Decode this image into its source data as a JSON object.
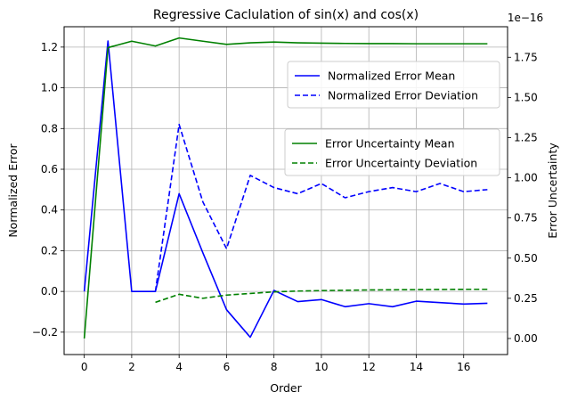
{
  "chart_data": {
    "type": "line",
    "title": "Regressive Caclulation of sin(x) and cos(x)",
    "xlabel": "Order",
    "ylabel_left": "Normalized Error",
    "ylabel_right": "Error Uncertainty",
    "right_axis_offset_text": "1e−16",
    "xlim": [
      -0.85,
      17.85
    ],
    "ylim_left": [
      -0.31,
      1.3
    ],
    "ylim_right": [
      -0.1,
      1.94
    ],
    "x_ticks": [
      0,
      2,
      4,
      6,
      8,
      10,
      12,
      14,
      16
    ],
    "x_tick_labels": [
      "0",
      "2",
      "4",
      "6",
      "8",
      "10",
      "12",
      "14",
      "16"
    ],
    "y_left_ticks": [
      -0.2,
      0.0,
      0.2,
      0.4,
      0.6,
      0.8,
      1.0,
      1.2
    ],
    "y_left_tick_labels": [
      "−0.2",
      "0.0",
      "0.2",
      "0.4",
      "0.6",
      "0.8",
      "1.0",
      "1.2"
    ],
    "y_right_ticks": [
      0.0,
      0.25,
      0.5,
      0.75,
      1.0,
      1.25,
      1.5,
      1.75
    ],
    "y_right_tick_labels": [
      "0.00",
      "0.25",
      "0.50",
      "0.75",
      "1.00",
      "1.25",
      "1.50",
      "1.75"
    ],
    "grid": true,
    "series": [
      {
        "name": "Normalized Error Mean",
        "axis": "left",
        "color": "#0000ff",
        "dash": "solid",
        "x": [
          0,
          1,
          2,
          3,
          4,
          5,
          6,
          7,
          8,
          9,
          10,
          11,
          12,
          13,
          14,
          15,
          16,
          17
        ],
        "y": [
          0.0,
          1.23,
          0.0,
          0.0,
          0.48,
          0.19,
          -0.09,
          -0.225,
          0.005,
          -0.05,
          -0.04,
          -0.075,
          -0.06,
          -0.075,
          -0.048,
          -0.055,
          -0.062,
          -0.058
        ]
      },
      {
        "name": "Normalized Error Deviation",
        "axis": "left",
        "color": "#0000ff",
        "dash": "dashed",
        "x": [
          3,
          4,
          5,
          6,
          7,
          8,
          9,
          10,
          11,
          12,
          13,
          14,
          15,
          16,
          17
        ],
        "y": [
          0.0,
          0.82,
          0.44,
          0.21,
          0.57,
          0.51,
          0.48,
          0.53,
          0.46,
          0.49,
          0.51,
          0.49,
          0.53,
          0.49,
          0.5
        ]
      },
      {
        "name": "Error Uncertainty Mean",
        "axis": "right",
        "color": "#008000",
        "dash": "solid",
        "x": [
          0,
          1,
          2,
          3,
          4,
          5,
          6,
          7,
          8,
          9,
          10,
          11,
          12,
          13,
          14,
          15,
          16,
          17
        ],
        "y": [
          0.0,
          1.81,
          1.85,
          1.82,
          1.87,
          1.85,
          1.83,
          1.84,
          1.845,
          1.84,
          1.838,
          1.836,
          1.835,
          1.835,
          1.834,
          1.834,
          1.834,
          1.834
        ]
      },
      {
        "name": "Error Uncertainty Deviation",
        "axis": "right",
        "color": "#008000",
        "dash": "dashed",
        "x": [
          3,
          4,
          5,
          6,
          7,
          8,
          9,
          10,
          11,
          12,
          13,
          14,
          15,
          16,
          17
        ],
        "y": [
          0.225,
          0.275,
          0.25,
          0.27,
          0.28,
          0.29,
          0.295,
          0.298,
          0.3,
          0.302,
          0.303,
          0.304,
          0.305,
          0.306,
          0.306
        ]
      }
    ],
    "legends": [
      {
        "placement": "upper-right",
        "entries": [
          "Normalized Error Mean",
          "Normalized Error Deviation"
        ]
      },
      {
        "placement": "center-right",
        "entries": [
          "Error Uncertainty Mean",
          "Error Uncertainty Deviation"
        ]
      }
    ]
  }
}
